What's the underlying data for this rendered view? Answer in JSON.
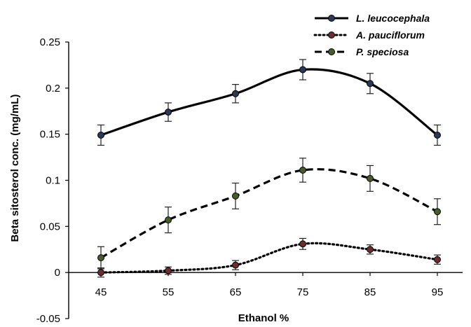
{
  "chart_data": {
    "type": "line",
    "xlabel": "Ethanol %",
    "ylabel": "Beta sitosterol conc. (mg/mL)",
    "x": [
      45,
      55,
      65,
      75,
      85,
      95
    ],
    "x_tick_labels": [
      "45",
      "55",
      "65",
      "75",
      "85",
      "95"
    ],
    "ylim": [
      -0.05,
      0.25
    ],
    "y_ticks": [
      -0.05,
      0,
      0.05,
      0.1,
      0.15,
      0.2,
      0.25
    ],
    "y_tick_labels": [
      "-0.05",
      "0",
      "0.05",
      "0.1",
      "0.15",
      "0.2",
      "0.25"
    ],
    "grid": false,
    "legend_position": "top-right",
    "smoothed": true,
    "error_bars": true,
    "series": [
      {
        "name": "L. leucocephala",
        "values": [
          0.149,
          0.174,
          0.194,
          0.22,
          0.205,
          0.149
        ],
        "errors": [
          0.011,
          0.01,
          0.01,
          0.011,
          0.011,
          0.011
        ],
        "line_style": "solid",
        "marker_color": "#2a3a55"
      },
      {
        "name": "A. pauciflorum",
        "values": [
          0.0,
          0.002,
          0.008,
          0.031,
          0.025,
          0.014
        ],
        "errors": [
          0.005,
          0.004,
          0.005,
          0.006,
          0.005,
          0.005
        ],
        "line_style": "dotted",
        "marker_color": "#6b2e2e"
      },
      {
        "name": "P. speciosa",
        "values": [
          0.016,
          0.057,
          0.083,
          0.111,
          0.102,
          0.066
        ],
        "errors": [
          0.012,
          0.014,
          0.014,
          0.013,
          0.014,
          0.014
        ],
        "line_style": "dashed",
        "marker_color": "#4a5a2a"
      }
    ]
  }
}
